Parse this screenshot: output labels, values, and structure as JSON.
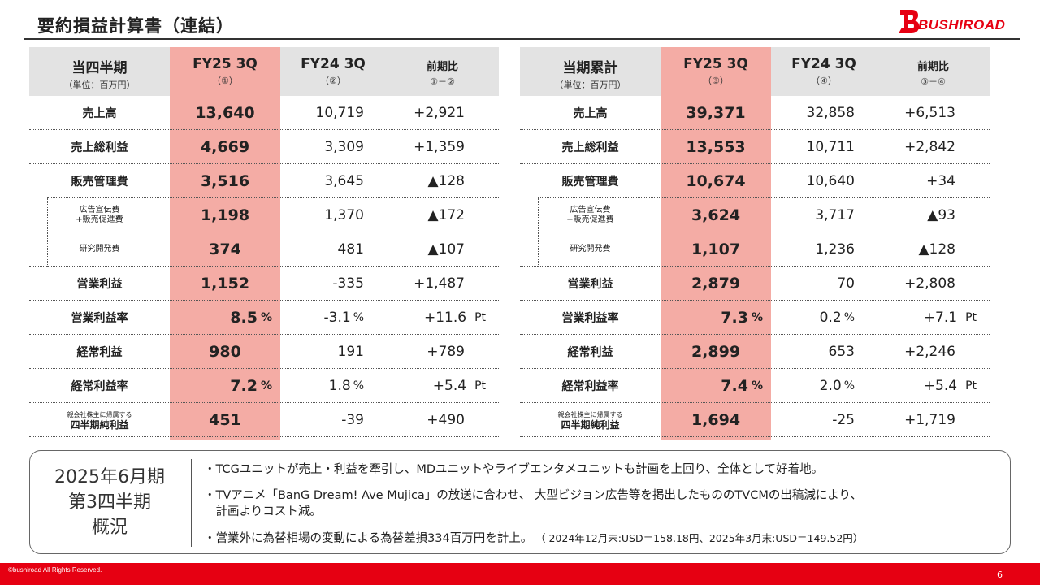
{
  "title": "要約損益計算書（連結）",
  "logo": {
    "text": "BUSHIROAD"
  },
  "colors": {
    "accent": "#e60012",
    "highlight": "#f4aca5",
    "header": "#e3e3e3"
  },
  "quarter_table": {
    "header": {
      "label": "当四半期",
      "unit": "（単位：百万円）",
      "cur": "FY25 3Q",
      "cur_sub": "（①）",
      "prev": "FY24 3Q",
      "prev_sub": "（②）",
      "diff": "前期比",
      "diff_sub": "①－②"
    },
    "rows": [
      {
        "label": "売上高",
        "cur": "13,640",
        "prev": "10,719",
        "diff": "+2,921"
      },
      {
        "label": "売上総利益",
        "cur": "4,669",
        "prev": "3,309",
        "diff": "+1,359"
      },
      {
        "label": "販売管理費",
        "cur": "3,516",
        "prev": "3,645",
        "diff": "▲128"
      },
      {
        "label": "広告宣伝費",
        "label2": "+販売促進費",
        "cur": "1,198",
        "prev": "1,370",
        "diff": "▲172"
      },
      {
        "label": "研究開発費",
        "cur": "374",
        "prev": "481",
        "diff": "▲107"
      },
      {
        "label": "営業利益",
        "cur": "1,152",
        "prev": "-335",
        "diff": "+1,487"
      },
      {
        "label": "営業利益率",
        "cur": "8.5",
        "cur_unit": "%",
        "prev": "-3.1",
        "prev_unit": "%",
        "diff": "+11.6",
        "diff_unit": "Pt"
      },
      {
        "label": "経常利益",
        "cur": "980",
        "prev": "191",
        "diff": "+789"
      },
      {
        "label": "経常利益率",
        "cur": "7.2",
        "cur_unit": "%",
        "prev": "1.8",
        "prev_unit": "%",
        "diff": "+5.4",
        "diff_unit": "Pt"
      },
      {
        "label": "親会社株主に帰属する",
        "label2": "四半期純利益",
        "cur": "451",
        "prev": "-39",
        "diff": "+490"
      }
    ]
  },
  "cumulative_table": {
    "header": {
      "label": "当期累計",
      "unit": "（単位：百万円）",
      "cur": "FY25 3Q",
      "cur_sub": "（③）",
      "prev": "FY24 3Q",
      "prev_sub": "（④）",
      "diff": "前期比",
      "diff_sub": "③－④"
    },
    "rows": [
      {
        "label": "売上高",
        "cur": "39,371",
        "prev": "32,858",
        "diff": "+6,513"
      },
      {
        "label": "売上総利益",
        "cur": "13,553",
        "prev": "10,711",
        "diff": "+2,842"
      },
      {
        "label": "販売管理費",
        "cur": "10,674",
        "prev": "10,640",
        "diff": "+34"
      },
      {
        "label": "広告宣伝費",
        "label2": "+販売促進費",
        "cur": "3,624",
        "prev": "3,717",
        "diff": "▲93"
      },
      {
        "label": "研究開発費",
        "cur": "1,107",
        "prev": "1,236",
        "diff": "▲128"
      },
      {
        "label": "営業利益",
        "cur": "2,879",
        "prev": "70",
        "diff": "+2,808"
      },
      {
        "label": "営業利益率",
        "cur": "7.3",
        "cur_unit": "%",
        "prev": "0.2",
        "prev_unit": "%",
        "diff": "+7.1",
        "diff_unit": "Pt"
      },
      {
        "label": "経常利益",
        "cur": "2,899",
        "prev": "653",
        "diff": "+2,246"
      },
      {
        "label": "経常利益率",
        "cur": "7.4",
        "cur_unit": "%",
        "prev": "2.0",
        "prev_unit": "%",
        "diff": "+5.4",
        "diff_unit": "Pt"
      },
      {
        "label": "親会社株主に帰属する",
        "label2": "四半期純利益",
        "cur": "1,694",
        "prev": "-25",
        "diff": "+1,719"
      }
    ]
  },
  "summary": {
    "title_lines": [
      "2025年6月期",
      "第3四半期",
      "概況"
    ],
    "bullet1": "・TCGユニットが売上・利益を牽引し、MDユニットやライブエンタメユニットも計画を上回り、全体として好着地。",
    "bullet2_line1": "・TVアニメ「BanG Dream! Ave Mujica」の放送に合わせ、 大型ビジョン広告等を掲出したもののTVCMの出稿減により、",
    "bullet2_line2": "　計画よりコスト減。",
    "bullet3": "・営業外に為替相場の変動による為替差損334百万円を計上。",
    "bullet3_note": "（ 2024年12月末:USD＝158.18円、2025年3月末:USD＝149.52円）"
  },
  "footer": {
    "copyright": "©bushiroad All Rights Reserved.",
    "page": "6"
  }
}
